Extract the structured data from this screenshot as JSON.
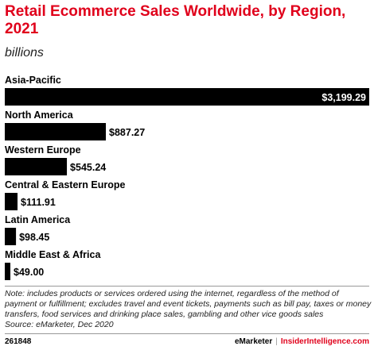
{
  "header": {
    "title": "Retail Ecommerce Sales Worldwide, by Region, 2021",
    "subtitle": "billions"
  },
  "chart_data": {
    "type": "bar",
    "orientation": "horizontal",
    "categories": [
      "Asia-Pacific",
      "North America",
      "Western Europe",
      "Central & Eastern Europe",
      "Latin America",
      "Middle East & Africa"
    ],
    "values": [
      3199.29,
      887.27,
      545.24,
      111.91,
      98.45,
      49.0
    ],
    "value_labels": [
      "$3,199.29",
      "$887.27",
      "$545.24",
      "$111.91",
      "$98.45",
      "$49.00"
    ],
    "title": "Retail Ecommerce Sales Worldwide, by Region, 2021",
    "subtitle": "billions",
    "bar_color": "#000000"
  },
  "notes": {
    "note": "Note: includes products or services ordered using the internet, regardless of the method of payment or fulfillment; excludes travel and event tickets, payments such as bill pay, taxes or money transfers, food services and drinking place sales, gambling and other vice goods sales",
    "source": "Source: eMarketer, Dec 2020"
  },
  "footer": {
    "chart_id": "261848",
    "brand1": "eMarketer",
    "separator": "|",
    "brand2": "InsiderIntelligence.com"
  },
  "colors": {
    "accent": "#e0001b",
    "bar": "#000000"
  }
}
